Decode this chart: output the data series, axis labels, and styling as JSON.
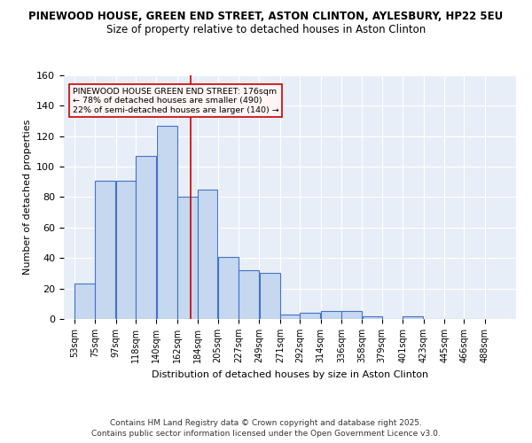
{
  "title1": "PINEWOOD HOUSE, GREEN END STREET, ASTON CLINTON, AYLESBURY, HP22 5EU",
  "title2": "Size of property relative to detached houses in Aston Clinton",
  "xlabel": "Distribution of detached houses by size in Aston Clinton",
  "ylabel": "Number of detached properties",
  "bar_values": [
    23,
    91,
    91,
    107,
    127,
    80,
    85,
    41,
    32,
    30,
    3,
    4,
    5,
    5,
    2,
    0,
    2,
    0,
    0,
    0
  ],
  "bar_labels": [
    "53sqm",
    "75sqm",
    "97sqm",
    "118sqm",
    "140sqm",
    "162sqm",
    "184sqm",
    "205sqm",
    "227sqm",
    "249sqm",
    "271sqm",
    "292sqm",
    "314sqm",
    "336sqm",
    "358sqm",
    "379sqm",
    "401sqm",
    "423sqm",
    "445sqm",
    "466sqm",
    "488sqm"
  ],
  "bar_color": "#c5d8ef",
  "bar_edge_color": "#4472c4",
  "property_line_x": 176,
  "property_line_color": "#cc0000",
  "annotation_title": "PINEWOOD HOUSE GREEN END STREET: 176sqm",
  "annotation_line2": "← 78% of detached houses are smaller (490)",
  "annotation_line3": "22% of semi-detached houses are larger (140) →",
  "annotation_box_facecolor": "#fff5f5",
  "annotation_border_color": "#cc0000",
  "ylim": [
    0,
    160
  ],
  "yticks": [
    0,
    20,
    40,
    60,
    80,
    100,
    120,
    140,
    160
  ],
  "footnote1": "Contains HM Land Registry data © Crown copyright and database right 2025.",
  "footnote2": "Contains public sector information licensed under the Open Government Licence v3.0.",
  "bin_edges": [
    53,
    75,
    97,
    118,
    140,
    162,
    184,
    205,
    227,
    249,
    271,
    292,
    314,
    336,
    358,
    379,
    401,
    423,
    445,
    466,
    488
  ],
  "background_color": "#e8eef8",
  "fig_background": "#ffffff"
}
